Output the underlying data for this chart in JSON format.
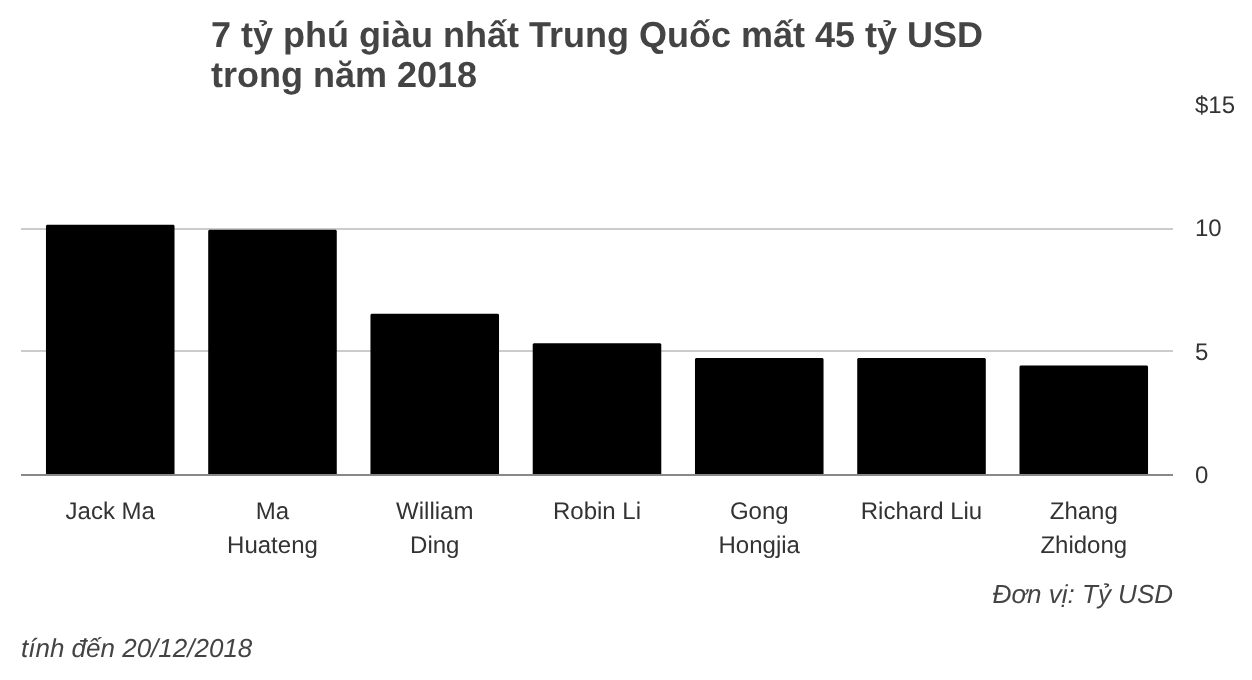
{
  "chart_data": {
    "type": "bar",
    "title": "7 tỷ phú giàu nhất Trung Quốc mất 45 tỷ USD\ntrong năm 2018",
    "categories": [
      "Jack Ma",
      "Ma\nHuateng",
      "William\nDing",
      "Robin Li",
      "Gong\nHongjia",
      "Richard Liu",
      "Zhang\nZhidong"
    ],
    "values": [
      10.1,
      9.9,
      6.5,
      5.3,
      4.7,
      4.7,
      4.4
    ],
    "color": "#000000",
    "ylim": [
      0,
      15
    ],
    "yticks": [
      0,
      5,
      10,
      {
        "value": 15,
        "label": "$15"
      }
    ],
    "grid": "y",
    "annotations": [
      "Đơn vị: Tỷ USD",
      "tính đến 20/12/2018"
    ]
  }
}
